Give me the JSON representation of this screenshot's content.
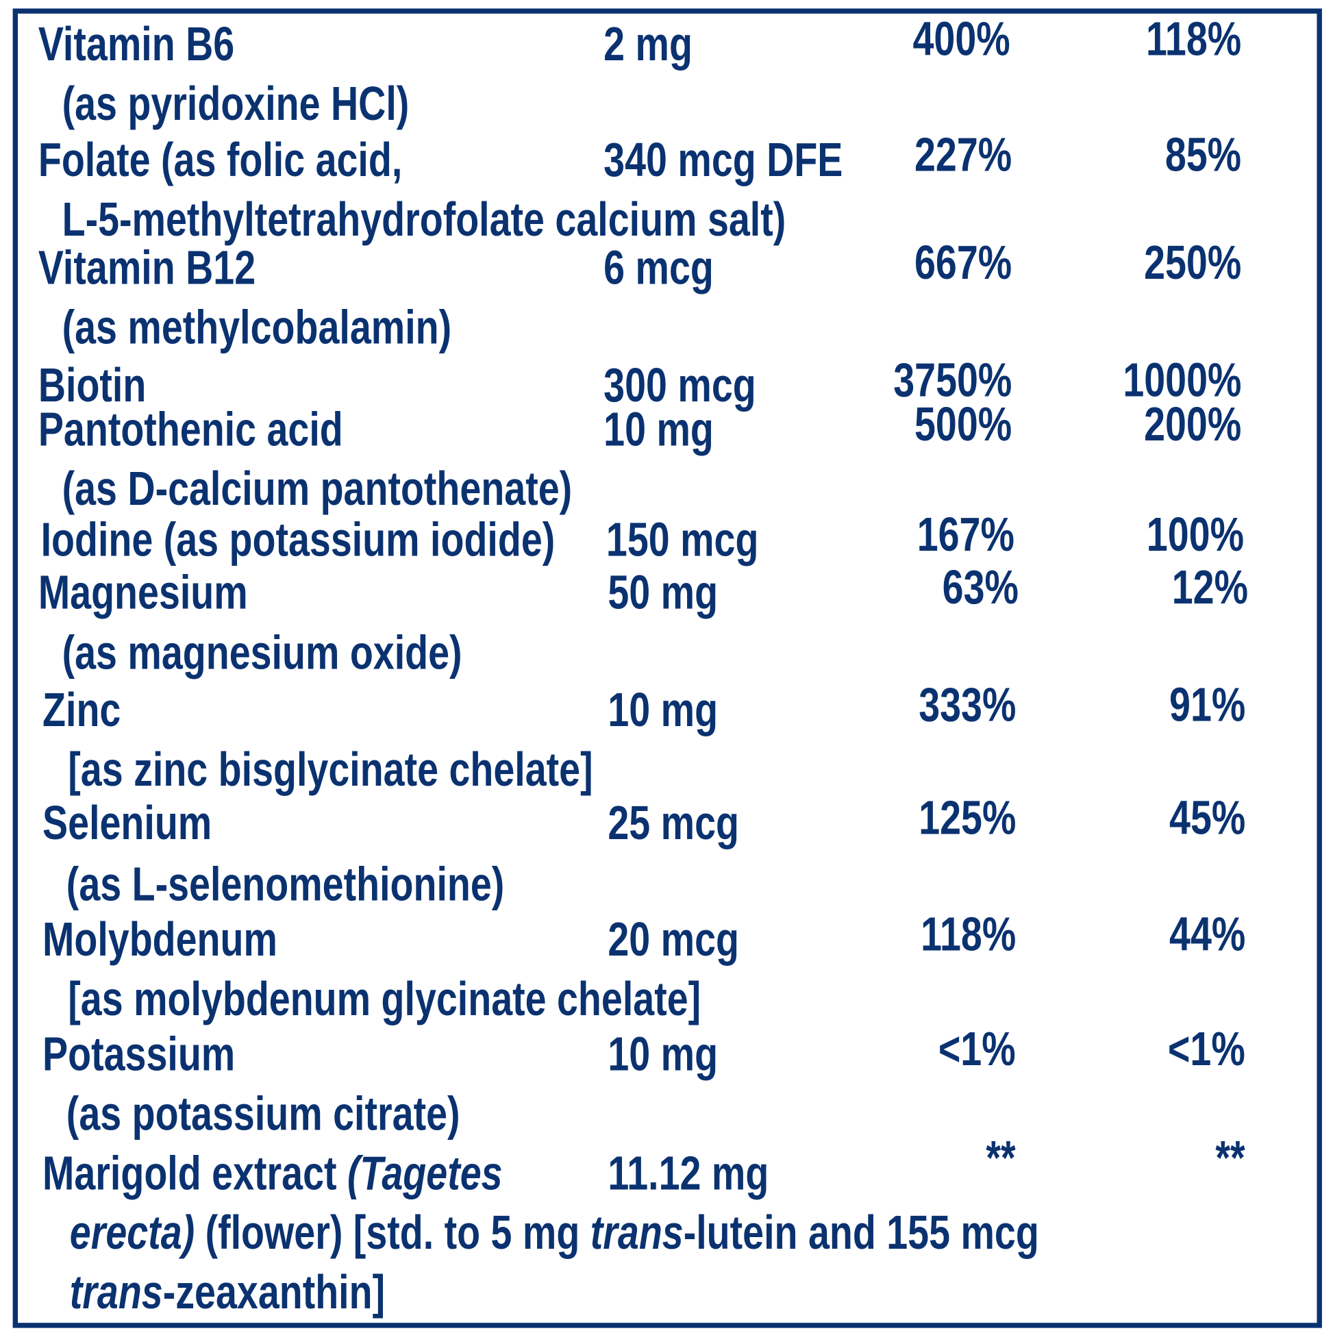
{
  "theme": {
    "text_color": "#0b3270",
    "border_color": "#0b3270",
    "background": "#ffffff"
  },
  "rows": [
    {
      "name": "Vitamin B6",
      "amount": "2 mg",
      "dv_adult": "400%",
      "dv_other": "118%",
      "sub": "(as pyridoxine HCl)"
    },
    {
      "name": "Folate (as folic acid,",
      "amount": "340 mcg DFE",
      "dv_adult": "227%",
      "dv_other": "85%",
      "sub": "L-5-methyltetrahydrofolate calcium salt)"
    },
    {
      "name": "Vitamin B12",
      "amount": "6 mcg",
      "dv_adult": "667%",
      "dv_other": "250%",
      "sub": "(as methylcobalamin)"
    },
    {
      "name": "Biotin",
      "amount": "300 mcg",
      "dv_adult": "3750%",
      "dv_other": "1000%"
    },
    {
      "name": "Pantothenic acid",
      "amount": "10 mg",
      "dv_adult": "500%",
      "dv_other": "200%",
      "sub": "(as D-calcium pantothenate)"
    },
    {
      "name": "Iodine (as potassium iodide)",
      "amount": "150 mcg",
      "dv_adult": "167%",
      "dv_other": "100%"
    },
    {
      "name": "Magnesium",
      "amount": "50 mg",
      "dv_adult": "63%",
      "dv_other": "12%",
      "sub": "(as magnesium oxide)"
    },
    {
      "name": "Zinc",
      "amount": "10 mg",
      "dv_adult": "333%",
      "dv_other": "91%",
      "sub": "[as zinc bisglycinate chelate]"
    },
    {
      "name": "Selenium",
      "amount": "25 mcg",
      "dv_adult": "125%",
      "dv_other": "45%",
      "sub": "(as L-selenomethionine)"
    },
    {
      "name": "Molybdenum",
      "amount": "20 mcg",
      "dv_adult": "118%",
      "dv_other": "44%",
      "sub": "[as molybdenum glycinate chelate]"
    },
    {
      "name": "Potassium",
      "amount": "10 mg",
      "dv_adult": "<1%",
      "dv_other": "<1%",
      "sub": "(as potassium citrate)"
    }
  ],
  "marigold": {
    "name_plain": "Marigold extract ",
    "name_italic": "(Tagetes",
    "amount": "11.12 mg",
    "dv_adult": "**",
    "dv_other": "**",
    "line2": [
      {
        "text": "erecta)",
        "italic": true
      },
      {
        "text": " (flower) [std. to 5 mg ",
        "italic": false
      },
      {
        "text": "trans",
        "italic": true
      },
      {
        "text": "-lutein and 155 mcg",
        "italic": false
      }
    ],
    "line3": [
      {
        "text": "trans",
        "italic": true
      },
      {
        "text": "-zeaxanthin]",
        "italic": false
      }
    ]
  }
}
